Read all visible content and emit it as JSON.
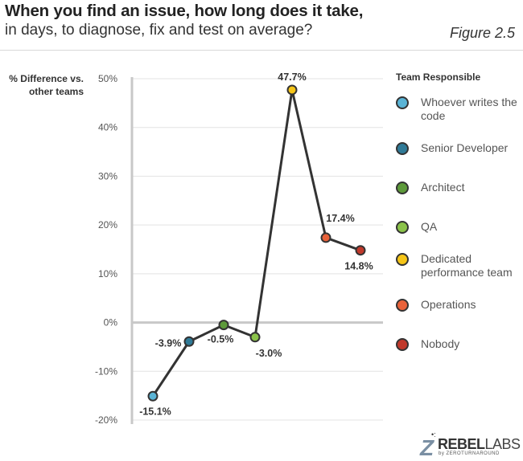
{
  "header": {
    "title": "When you find an issue, how long does it take,",
    "subtitle": "in days, to diagnose, fix and test on average?",
    "figure_label": "Figure 2.5"
  },
  "legend": {
    "title": "Team Responsible",
    "items": [
      {
        "label": "Whoever writes the code",
        "color": "#5ab4d6"
      },
      {
        "label": "Senior Developer",
        "color": "#2f7a97"
      },
      {
        "label": "Architect",
        "color": "#5d9a3a"
      },
      {
        "label": "QA",
        "color": "#8bc34a"
      },
      {
        "label": "Dedicated performance team",
        "color": "#f5c518"
      },
      {
        "label": "Operations",
        "color": "#e8623a"
      },
      {
        "label": "Nobody",
        "color": "#c0392b"
      }
    ]
  },
  "logo": {
    "mark": "Z",
    "dots": "•:",
    "word_bold": "REBEL",
    "word_light": "LABS",
    "sub": "by ZEROTURNAROUND"
  },
  "chart_data": {
    "type": "line",
    "title": "When you find an issue, how long does it take, in days, to diagnose, fix and test on average?",
    "ylabel": "% Difference vs. other teams",
    "xlabel": "",
    "categories": [
      "Whoever writes the code",
      "Senior Developer",
      "Architect",
      "QA",
      "Dedicated performance team",
      "Operations",
      "Nobody"
    ],
    "values": [
      -15.1,
      -3.9,
      -0.5,
      -3.0,
      47.7,
      17.4,
      14.8
    ],
    "value_labels": [
      "-15.1%",
      "-3.9%",
      "-0.5%",
      "-3.0%",
      "47.7%",
      "17.4%",
      "14.8%"
    ],
    "point_colors": [
      "#5ab4d6",
      "#2f7a97",
      "#5d9a3a",
      "#8bc34a",
      "#f5c518",
      "#e8623a",
      "#c0392b"
    ],
    "ylim": [
      -20,
      50
    ],
    "yticks": [
      50,
      40,
      30,
      20,
      10,
      0,
      -10,
      -20
    ],
    "ytick_labels": [
      "50%",
      "40%",
      "30%",
      "20%",
      "10%",
      "0%",
      "-10%",
      "-20%"
    ],
    "grid": true,
    "legend_position": "right",
    "line_color": "#333333"
  }
}
